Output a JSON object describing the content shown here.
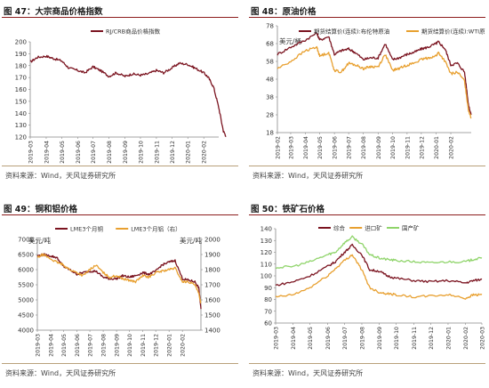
{
  "charts": [
    {
      "title": "图 47：大宗商品价格指数",
      "source": "资料来源：Wind，天风证券研究所",
      "chart_data": {
        "type": "line",
        "yticks": [
          120,
          130,
          140,
          150,
          160,
          170,
          180,
          190,
          200
        ],
        "ylim": [
          120,
          200
        ],
        "xticks": [
          "2019-03",
          "2019-04",
          "2019-05",
          "2019-06",
          "2019-07",
          "2019-08",
          "2019-09",
          "2019-10",
          "2019-11",
          "2019-12",
          "2020-01",
          "2020-02"
        ],
        "xlim": [
          "2019-03",
          "2020-03"
        ],
        "series": [
          {
            "name": "RJ/CRB商品价格指数",
            "color": "#7b1420",
            "axis": "left",
            "x": [
              "2019-03",
              "2019-03-15",
              "2019-04",
              "2019-04-15",
              "2019-05",
              "2019-05-15",
              "2019-06",
              "2019-06-15",
              "2019-07",
              "2019-07-15",
              "2019-08",
              "2019-08-15",
              "2019-09",
              "2019-09-15",
              "2019-10",
              "2019-10-15",
              "2019-11",
              "2019-11-15",
              "2019-12",
              "2019-12-15",
              "2020-01",
              "2020-01-15",
              "2020-02",
              "2020-02-10",
              "2020-02-20",
              "2020-03",
              "2020-03-10",
              "2020-03-15"
            ],
            "y": [
              183,
              187,
              188,
              186,
              184,
              178,
              176,
              174,
              179,
              176,
              171,
              174,
              171,
              173,
              172,
              173,
              176,
              174,
              178,
              182,
              181,
              178,
              174,
              170,
              162,
              145,
              125,
              121
            ]
          }
        ]
      }
    },
    {
      "title": "图 48：原油价格",
      "source": "资料来源：Wind，天风证券研究所",
      "chart_data": {
        "type": "line",
        "yticks": [
          18,
          28,
          38,
          48,
          58,
          68,
          78
        ],
        "ylim": [
          18,
          78
        ],
        "ylabel": "美元/桶",
        "xticks": [
          "2019-02",
          "2019-03",
          "2019-04",
          "2019-05",
          "2019-06",
          "2019-07",
          "2019-08",
          "2019-09",
          "2019-10",
          "2019-11",
          "2019-12",
          "2020-01",
          "2020-02"
        ],
        "xlim": [
          "2019-02",
          "2020-03-15"
        ],
        "series": [
          {
            "name": "期货结算价(连续):布伦特原油",
            "color": "#7b1420",
            "axis": "left",
            "x": [
              "2019-02",
              "2019-03",
              "2019-04",
              "2019-04-25",
              "2019-05",
              "2019-05-20",
              "2019-06",
              "2019-06-15",
              "2019-07",
              "2019-07-15",
              "2019-08",
              "2019-08-15",
              "2019-09",
              "2019-09-16",
              "2019-10",
              "2019-10-15",
              "2019-11",
              "2019-11-15",
              "2019-12",
              "2019-12-15",
              "2020-01",
              "2020-01-06",
              "2020-01-20",
              "2020-02",
              "2020-02-15",
              "2020-03",
              "2020-03-09",
              "2020-03-15"
            ],
            "y": [
              62,
              66,
              70,
              74,
              70,
              72,
              62,
              64,
              65,
              63,
              59,
              60,
              60,
              68,
              59,
              60,
              62,
              63,
              65,
              66,
              68,
              69,
              65,
              56,
              57,
              52,
              34,
              28
            ]
          },
          {
            "name": "期货结算价(连续):WTI原油",
            "color": "#e8a030",
            "axis": "left",
            "x": [
              "2019-02",
              "2019-03",
              "2019-04",
              "2019-04-25",
              "2019-05",
              "2019-05-20",
              "2019-06",
              "2019-06-15",
              "2019-07",
              "2019-07-15",
              "2019-08",
              "2019-08-15",
              "2019-09",
              "2019-09-16",
              "2019-10",
              "2019-10-15",
              "2019-11",
              "2019-11-15",
              "2019-12",
              "2019-12-15",
              "2020-01",
              "2020-01-06",
              "2020-01-20",
              "2020-02",
              "2020-02-15",
              "2020-03",
              "2020-03-09",
              "2020-03-15"
            ],
            "y": [
              54,
              58,
              64,
              66,
              61,
              63,
              53,
              52,
              57,
              56,
              54,
              55,
              55,
              62,
              53,
              54,
              56,
              57,
              59,
              60,
              61,
              63,
              58,
              51,
              52,
              47,
              31,
              26
            ]
          }
        ]
      }
    },
    {
      "title": "图 49：铜和铝价格",
      "source": "资料来源：Wind，天风证券研究所",
      "chart_data": {
        "type": "line",
        "yticks": [
          4000,
          4500,
          5000,
          5500,
          6000,
          6500,
          7000
        ],
        "ylim": [
          4000,
          7000
        ],
        "ylabel": "美元/吨",
        "y2ticks": [
          1400,
          1500,
          1600,
          1700,
          1800,
          1900,
          2000
        ],
        "y2lim": [
          1400,
          2000
        ],
        "y2label": "美元/吨",
        "xticks": [
          "2019-03",
          "2019-04",
          "2019-05",
          "2019-06",
          "2019-07",
          "2019-08",
          "2019-09",
          "2019-10",
          "2019-11",
          "2019-12",
          "2020-01",
          "2020-02"
        ],
        "xlim": [
          "2019-03",
          "2020-03-15"
        ],
        "series": [
          {
            "name": "LME3个月铜",
            "color": "#7b1420",
            "axis": "left",
            "x": [
              "2019-03",
              "2019-03-15",
              "2019-04",
              "2019-04-15",
              "2019-05",
              "2019-05-15",
              "2019-06",
              "2019-06-15",
              "2019-07",
              "2019-07-15",
              "2019-08",
              "2019-08-15",
              "2019-09",
              "2019-09-15",
              "2019-10",
              "2019-10-15",
              "2019-11",
              "2019-11-15",
              "2019-12",
              "2019-12-15",
              "2020-01",
              "2020-01-15",
              "2020-02",
              "2020-02-15",
              "2020-03",
              "2020-03-10",
              "2020-03-15"
            ],
            "y": [
              6450,
              6500,
              6450,
              6400,
              6100,
              6000,
              5850,
              5900,
              5950,
              5950,
              5750,
              5700,
              5700,
              5800,
              5750,
              5800,
              5900,
              5850,
              5950,
              6150,
              6250,
              6300,
              5700,
              5650,
              5600,
              5400,
              4700
            ]
          },
          {
            "name": "LME3个月铝（右）",
            "color": "#e8a030",
            "axis": "right",
            "x": [
              "2019-03",
              "2019-03-15",
              "2019-04",
              "2019-04-15",
              "2019-05",
              "2019-05-15",
              "2019-06",
              "2019-06-15",
              "2019-07",
              "2019-07-15",
              "2019-08",
              "2019-08-15",
              "2019-09",
              "2019-09-15",
              "2019-10",
              "2019-10-15",
              "2019-11",
              "2019-11-15",
              "2019-12",
              "2019-12-15",
              "2020-01",
              "2020-01-15",
              "2020-02",
              "2020-02-15",
              "2020-03",
              "2020-03-10",
              "2020-03-15"
            ],
            "y": [
              1880,
              1900,
              1870,
              1850,
              1830,
              1800,
              1780,
              1760,
              1800,
              1830,
              1780,
              1750,
              1760,
              1740,
              1730,
              1720,
              1760,
              1750,
              1780,
              1790,
              1800,
              1810,
              1720,
              1720,
              1700,
              1640,
              1580
            ]
          }
        ]
      }
    },
    {
      "title": "图 50：铁矿石价格",
      "source": "资料来源：Wind，天风证券研究所",
      "chart_data": {
        "type": "line",
        "yticks": [
          60,
          70,
          80,
          90,
          100,
          110,
          120,
          130,
          140
        ],
        "ylim": [
          60,
          140
        ],
        "xticks": [
          "2019-03",
          "2019-04",
          "2019-05",
          "2019-06",
          "2019-07",
          "2019-08",
          "2019-09",
          "2019-10",
          "2019-11",
          "2019-12",
          "2020-01",
          "2020-02",
          "2020-03"
        ],
        "xlim": [
          "2019-03",
          "2020-03"
        ],
        "series": [
          {
            "name": "综合",
            "color": "#7b1420",
            "axis": "left",
            "x": [
              "2019-03",
              "2019-04",
              "2019-05",
              "2019-06",
              "2019-06-15",
              "2019-07",
              "2019-07-15",
              "2019-08",
              "2019-08-15",
              "2019-09",
              "2019-09-15",
              "2019-10",
              "2019-11",
              "2019-12",
              "2020-01",
              "2020-02",
              "2020-02-15",
              "2020-03"
            ],
            "y": [
              92,
              95,
              100,
              108,
              112,
              120,
              126,
              118,
              105,
              104,
              100,
              98,
              96,
              95,
              96,
              94,
              96,
              97
            ]
          },
          {
            "name": "进口矿",
            "color": "#e8a030",
            "axis": "left",
            "x": [
              "2019-03",
              "2019-04",
              "2019-05",
              "2019-06",
              "2019-06-15",
              "2019-07",
              "2019-07-15",
              "2019-08",
              "2019-08-15",
              "2019-09",
              "2019-09-15",
              "2019-10",
              "2019-11",
              "2019-12",
              "2020-01",
              "2020-02",
              "2020-02-15",
              "2020-03"
            ],
            "y": [
              82,
              84,
              90,
              100,
              106,
              113,
              118,
              105,
              90,
              86,
              85,
              84,
              82,
              83,
              84,
              81,
              84,
              84
            ]
          },
          {
            "name": "国产矿",
            "color": "#8fd46a",
            "axis": "left",
            "x": [
              "2019-03",
              "2019-04",
              "2019-05",
              "2019-06",
              "2019-06-15",
              "2019-07",
              "2019-07-15",
              "2019-08",
              "2019-08-15",
              "2019-09",
              "2019-09-15",
              "2019-10",
              "2019-11",
              "2019-12",
              "2020-01",
              "2020-02",
              "2020-02-15",
              "2020-03"
            ],
            "y": [
              107,
              108,
              112,
              118,
              120,
              128,
              133,
              127,
              118,
              115,
              114,
              113,
              112,
              111,
              112,
              112,
              114,
              115
            ]
          }
        ]
      }
    }
  ]
}
